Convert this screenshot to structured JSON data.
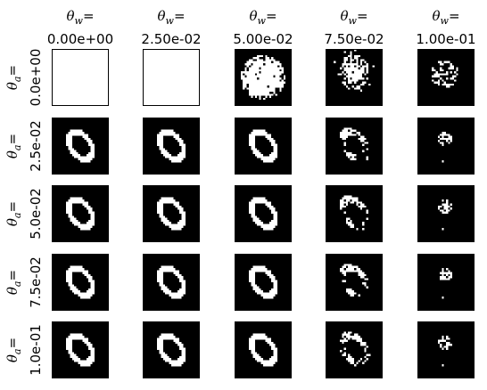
{
  "chart_data": {
    "type": "heatmap",
    "description_axis_symbols": {
      "col_symbol": "θ",
      "col_sub": "w",
      "row_symbol": "θ",
      "row_sub": "a",
      "eq": "="
    },
    "columns": [
      "0.00e+00",
      "2.50e-02",
      "5.00e-02",
      "7.50e-02",
      "1.00e-01"
    ],
    "rows": [
      "0.0e+00",
      "2.5e-02",
      "5.0e-02",
      "7.5e-02",
      "1.0e-01"
    ],
    "cells": [
      [
        "blank",
        "blank",
        "blob",
        "scatter_blob",
        "sparse"
      ],
      [
        "ring",
        "ring",
        "ring",
        "ring_fragments",
        "sparse_small"
      ],
      [
        "ring",
        "ring",
        "ring",
        "ring_fragments",
        "sparse_small"
      ],
      [
        "ring",
        "ring",
        "ring",
        "ring_fragments",
        "sparse_small"
      ],
      [
        "ring",
        "ring",
        "ring",
        "ring_fragments",
        "sparse_small"
      ]
    ],
    "colors": {
      "background": "#000000",
      "foreground": "#ffffff",
      "blank": "#ffffff"
    }
  }
}
